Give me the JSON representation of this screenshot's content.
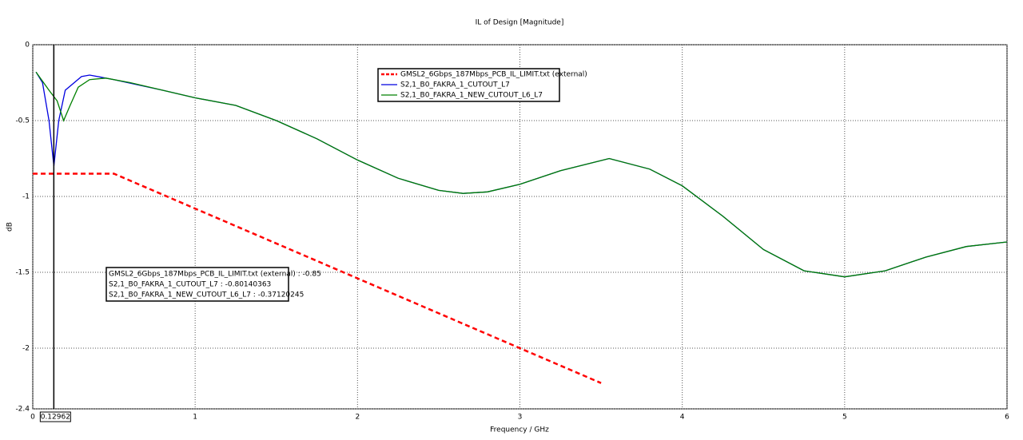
{
  "chart_data": {
    "type": "line",
    "title": "IL of Design [Magnitude]",
    "xlabel": "Frequency / GHz",
    "ylabel": "dB",
    "xlim": [
      0,
      6
    ],
    "ylim": [
      -2.4,
      0
    ],
    "xticks": [
      0,
      1,
      2,
      3,
      4,
      5,
      6
    ],
    "yticks": [
      0,
      -0.5,
      -1,
      -1.5,
      -2,
      -2.4
    ],
    "grid": true,
    "legend": "top",
    "series": [
      {
        "name": "GMSL2_6Gbps_187Mbps_PCB_IL_LIMIT.txt (external)",
        "color": "#ff0000",
        "dashed": true,
        "x": [
          0,
          0.5,
          3.5
        ],
        "values": [
          -0.85,
          -0.85,
          -2.23
        ]
      },
      {
        "name": "S2,1_B0_FAKRA_1_CUTOUT_L7",
        "color": "#0000e0",
        "dashed": false,
        "x": [
          0.02,
          0.06,
          0.1,
          0.13,
          0.16,
          0.2,
          0.3,
          0.35,
          0.5,
          0.8,
          1,
          1.25,
          1.5,
          1.75,
          2,
          2.25,
          2.5,
          2.65,
          2.8,
          3,
          3.25,
          3.55,
          3.8,
          4,
          4.25,
          4.5,
          4.75,
          5,
          5.25,
          5.5,
          5.75,
          6
        ],
        "values": [
          -0.18,
          -0.25,
          -0.5,
          -0.8,
          -0.5,
          -0.3,
          -0.21,
          -0.2,
          -0.23,
          -0.3,
          -0.35,
          -0.4,
          -0.5,
          -0.62,
          -0.76,
          -0.88,
          -0.96,
          -0.98,
          -0.97,
          -0.92,
          -0.83,
          -0.75,
          -0.82,
          -0.93,
          -1.13,
          -1.35,
          -1.49,
          -1.53,
          -1.49,
          -1.4,
          -1.33,
          -1.3
        ]
      },
      {
        "name": "S2,1_B0_FAKRA_1_NEW_CUTOUT_L6_L7",
        "color": "#008000",
        "dashed": false,
        "x": [
          0.02,
          0.1,
          0.15,
          0.19,
          0.23,
          0.28,
          0.35,
          0.45,
          0.6,
          0.8,
          1,
          1.25,
          1.5,
          1.75,
          2,
          2.25,
          2.5,
          2.65,
          2.8,
          3,
          3.25,
          3.55,
          3.8,
          4,
          4.25,
          4.5,
          4.75,
          5,
          5.25,
          5.5,
          5.75,
          6
        ],
        "values": [
          -0.18,
          -0.3,
          -0.37,
          -0.5,
          -0.4,
          -0.28,
          -0.23,
          -0.22,
          -0.25,
          -0.3,
          -0.35,
          -0.4,
          -0.5,
          -0.62,
          -0.76,
          -0.88,
          -0.96,
          -0.98,
          -0.97,
          -0.92,
          -0.83,
          -0.75,
          -0.82,
          -0.93,
          -1.13,
          -1.35,
          -1.49,
          -1.53,
          -1.49,
          -1.4,
          -1.33,
          -1.3
        ]
      }
    ],
    "marker": {
      "x": 0.12962,
      "label": "0.12962",
      "readouts": [
        "GMSL2_6Gbps_187Mbps_PCB_IL_LIMIT.txt (external) : -0.85",
        "S2,1_B0_FAKRA_1_CUTOUT_L7 : -0.80140363",
        "S2,1_B0_FAKRA_1_NEW_CUTOUT_L6_L7 : -0.37120245"
      ]
    }
  }
}
